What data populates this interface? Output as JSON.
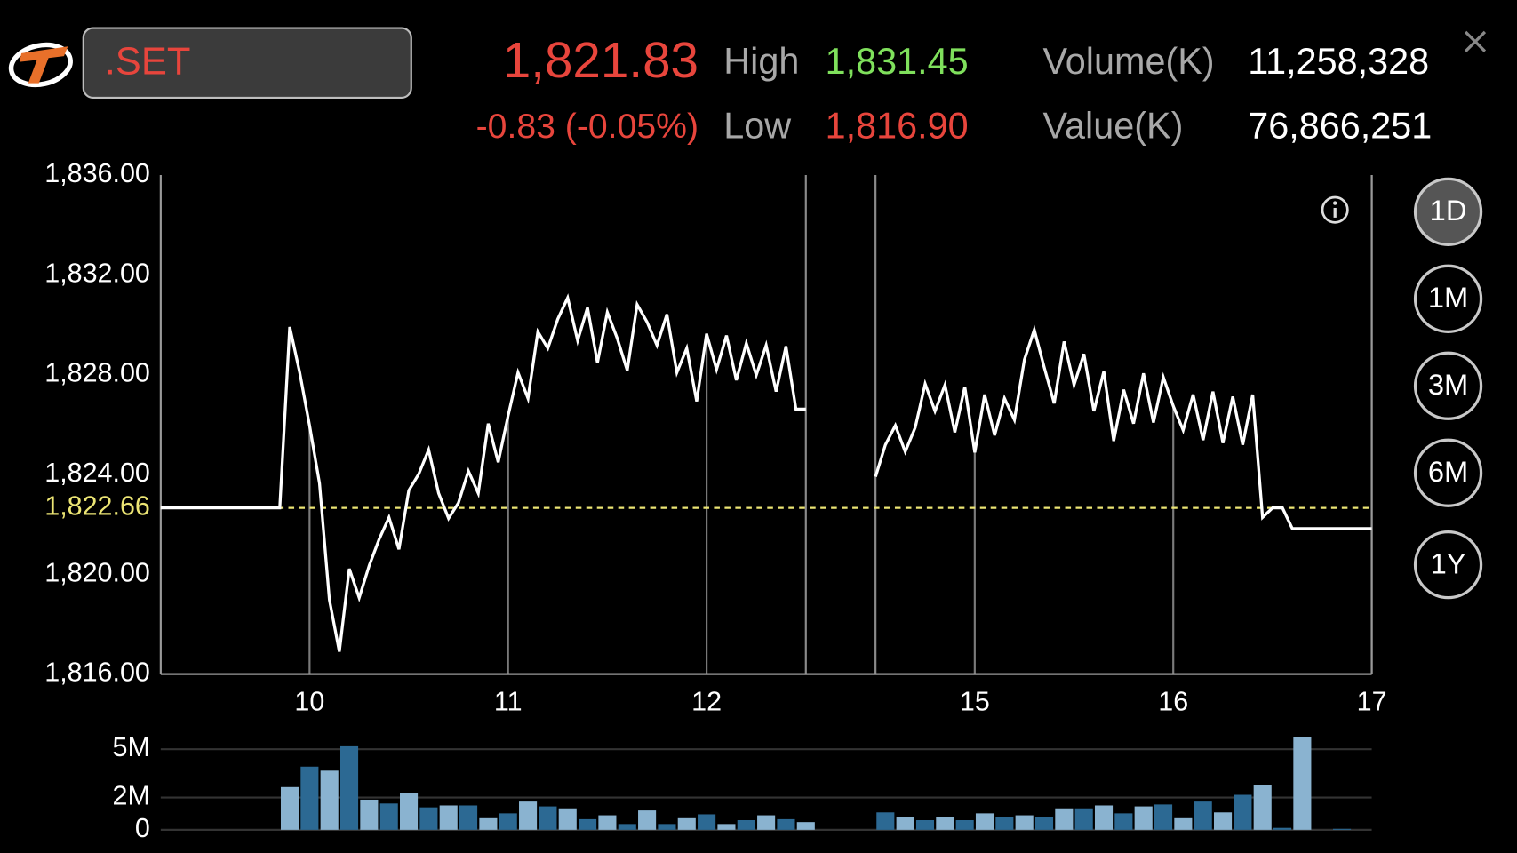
{
  "header": {
    "symbol": ".SET",
    "last": "1,821.83",
    "change": "-0.83 (-0.05%)",
    "high_label": "High",
    "high": "1,831.45",
    "low_label": "Low",
    "low": "1,816.90",
    "volume_label": "Volume(K)",
    "volume": "11,258,328",
    "value_label": "Value(K)",
    "value": "76,866,251"
  },
  "ranges": {
    "options": [
      "1D",
      "1M",
      "3M",
      "6M",
      "1Y"
    ],
    "selected": 0
  },
  "chart_data": [
    {
      "type": "line",
      "x": [
        9.25,
        9.85,
        9.9,
        9.95,
        10,
        10.05,
        10.1,
        10.15,
        10.2,
        10.25,
        10.3,
        10.35,
        10.4,
        10.45,
        10.5,
        10.55,
        10.6,
        10.65,
        10.7,
        10.75,
        10.8,
        10.85,
        10.9,
        10.95,
        11,
        11.05,
        11.1,
        11.15,
        11.2,
        11.25,
        11.3,
        11.35,
        11.4,
        11.45,
        11.5,
        11.55,
        11.6,
        11.65,
        11.7,
        11.75,
        11.8,
        11.85,
        11.9,
        11.95,
        12,
        12.05,
        12.1,
        12.15,
        12.2,
        12.25,
        12.3,
        12.35,
        12.4,
        12.45,
        12.5,
        13.5,
        14.5,
        14.55,
        14.6,
        14.65,
        14.7,
        14.75,
        14.8,
        14.85,
        14.9,
        14.95,
        15,
        15.05,
        15.1,
        15.15,
        15.2,
        15.25,
        15.3,
        15.35,
        15.4,
        15.45,
        15.5,
        15.55,
        15.6,
        15.65,
        15.7,
        15.75,
        15.8,
        15.85,
        15.9,
        15.95,
        16,
        16.05,
        16.1,
        16.15,
        16.2,
        16.25,
        16.3,
        16.35,
        16.4,
        16.45,
        16.5,
        16.55,
        16.6,
        17
      ],
      "series": [
        {
          "color": "#ffffff",
          "values": [
            1822.66,
            1822.66,
            1829.91,
            1828.09,
            1825.96,
            1823.64,
            1818.98,
            1816.9,
            1820.22,
            1819.06,
            1820.34,
            1821.39,
            1822.28,
            1821.0,
            1823.36,
            1824.02,
            1824.99,
            1823.25,
            1822.24,
            1822.86,
            1824.14,
            1823.25,
            1826.04,
            1824.49,
            1826.35,
            1828.09,
            1827.05,
            1829.72,
            1829.06,
            1830.22,
            1831.08,
            1829.37,
            1830.69,
            1828.48,
            1830.5,
            1829.45,
            1828.17,
            1830.81,
            1830.11,
            1829.18,
            1830.42,
            1828.09,
            1829.06,
            1826.93,
            1829.64,
            1828.21,
            1829.57,
            1827.78,
            1829.26,
            1827.98,
            1829.18,
            1827.32,
            1829.14,
            1826.62,
            1826.62,
            null,
            1823.91,
            1825.19,
            1825.96,
            1824.91,
            1825.88,
            1827.63,
            1826.54,
            1827.59,
            1825.69,
            1827.51,
            1824.88,
            1827.2,
            1825.57,
            1827.05,
            1826.19,
            1828.6,
            1829.8,
            1828.29,
            1826.85,
            1829.33,
            1827.59,
            1828.83,
            1826.54,
            1828.13,
            1825.34,
            1827.4,
            1826.04,
            1828.05,
            1826.08,
            1827.9,
            1826.74,
            1825.77,
            1827.2,
            1825.38,
            1827.32,
            1825.26,
            1827.12,
            1825.19,
            1827.2,
            1822.28,
            1822.66,
            1822.66,
            1821.83,
            1821.83
          ]
        }
      ],
      "xlim": [
        9.25,
        17
      ],
      "axis_break": [
        12.5,
        14.5
      ],
      "xticks": [
        10,
        11,
        12,
        15,
        16,
        17
      ],
      "ylim": [
        1816,
        1836
      ],
      "yticks": [
        {
          "value": 1816,
          "label": "1,816.00"
        },
        {
          "value": 1820,
          "label": "1,820.00"
        },
        {
          "value": 1824,
          "label": "1,824.00"
        },
        {
          "value": 1828,
          "label": "1,828.00"
        },
        {
          "value": 1832,
          "label": "1,832.00"
        },
        {
          "value": 1836,
          "label": "1,836.00"
        }
      ],
      "reference_line": {
        "value": 1822.66,
        "label": "1,822.66",
        "color": "#ece574"
      }
    },
    {
      "type": "bar",
      "x": [
        9.9,
        10,
        10.1,
        10.2,
        10.3,
        10.4,
        10.5,
        10.6,
        10.7,
        10.8,
        10.9,
        11,
        11.1,
        11.2,
        11.3,
        11.4,
        11.5,
        11.6,
        11.7,
        11.8,
        11.9,
        12,
        12.1,
        12.2,
        12.3,
        12.4,
        12.5,
        14.55,
        14.65,
        14.75,
        14.85,
        14.95,
        15.05,
        15.15,
        15.25,
        15.35,
        15.45,
        15.55,
        15.65,
        15.75,
        15.85,
        15.95,
        16.05,
        16.15,
        16.25,
        16.35,
        16.45,
        16.55,
        16.65,
        16.85
      ],
      "values": [
        2.65,
        3.92,
        3.67,
        5.18,
        1.87,
        1.63,
        2.29,
        1.39,
        1.51,
        1.51,
        0.72,
        1.02,
        1.75,
        1.45,
        1.33,
        0.66,
        0.9,
        0.36,
        1.2,
        0.36,
        0.72,
        0.96,
        0.36,
        0.6,
        0.9,
        0.66,
        0.48,
        1.08,
        0.78,
        0.6,
        0.78,
        0.6,
        1.02,
        0.78,
        0.9,
        0.78,
        1.33,
        1.33,
        1.51,
        1.02,
        1.45,
        1.57,
        0.72,
        1.75,
        1.08,
        2.17,
        2.77,
        0.12,
        5.78,
        0.06
      ],
      "colors": [
        "#8ab3d0",
        "#2c6993"
      ],
      "ylim": [
        0,
        6
      ],
      "yticks": [
        0,
        {
          "value": 2,
          "label": "2M"
        },
        {
          "value": 5,
          "label": "5M"
        }
      ]
    }
  ]
}
